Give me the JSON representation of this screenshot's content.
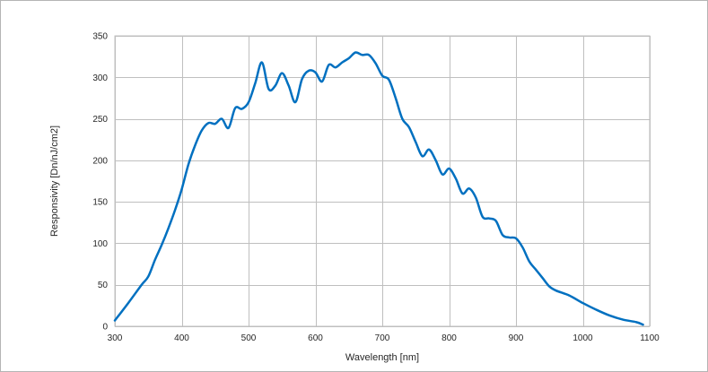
{
  "chart_data": {
    "type": "line",
    "title": "",
    "xlabel": "Wavelength [nm]",
    "ylabel": "Responsivity [Dn/nJ/cm2]",
    "xlim": [
      300,
      1100
    ],
    "ylim": [
      0,
      350
    ],
    "xticks": [
      300,
      400,
      500,
      600,
      700,
      800,
      900,
      1000,
      1100
    ],
    "yticks": [
      0,
      50,
      100,
      150,
      200,
      250,
      300,
      350
    ],
    "grid": true,
    "legend": "none",
    "series": [
      {
        "color": "#0070c0",
        "x": [
          300,
          320,
          340,
          350,
          360,
          370,
          380,
          390,
          400,
          410,
          420,
          430,
          440,
          450,
          460,
          470,
          480,
          490,
          500,
          510,
          520,
          530,
          540,
          550,
          560,
          570,
          580,
          590,
          600,
          610,
          620,
          630,
          640,
          650,
          660,
          670,
          680,
          690,
          700,
          710,
          720,
          730,
          740,
          750,
          760,
          770,
          780,
          790,
          800,
          810,
          820,
          830,
          840,
          850,
          860,
          870,
          880,
          890,
          900,
          910,
          920,
          930,
          940,
          950,
          960,
          980,
          1000,
          1020,
          1040,
          1060,
          1080,
          1090
        ],
        "y": [
          7,
          28,
          50,
          60,
          80,
          98,
          118,
          140,
          165,
          195,
          218,
          236,
          245,
          244,
          250,
          239,
          263,
          262,
          270,
          293,
          318,
          286,
          290,
          305,
          290,
          270,
          298,
          308,
          306,
          295,
          315,
          312,
          318,
          323,
          330,
          327,
          327,
          317,
          302,
          297,
          275,
          250,
          240,
          222,
          205,
          213,
          200,
          183,
          190,
          178,
          160,
          166,
          155,
          132,
          130,
          127,
          110,
          107,
          106,
          95,
          78,
          68,
          58,
          48,
          43,
          37,
          28,
          20,
          13,
          8,
          5,
          2
        ]
      }
    ]
  }
}
